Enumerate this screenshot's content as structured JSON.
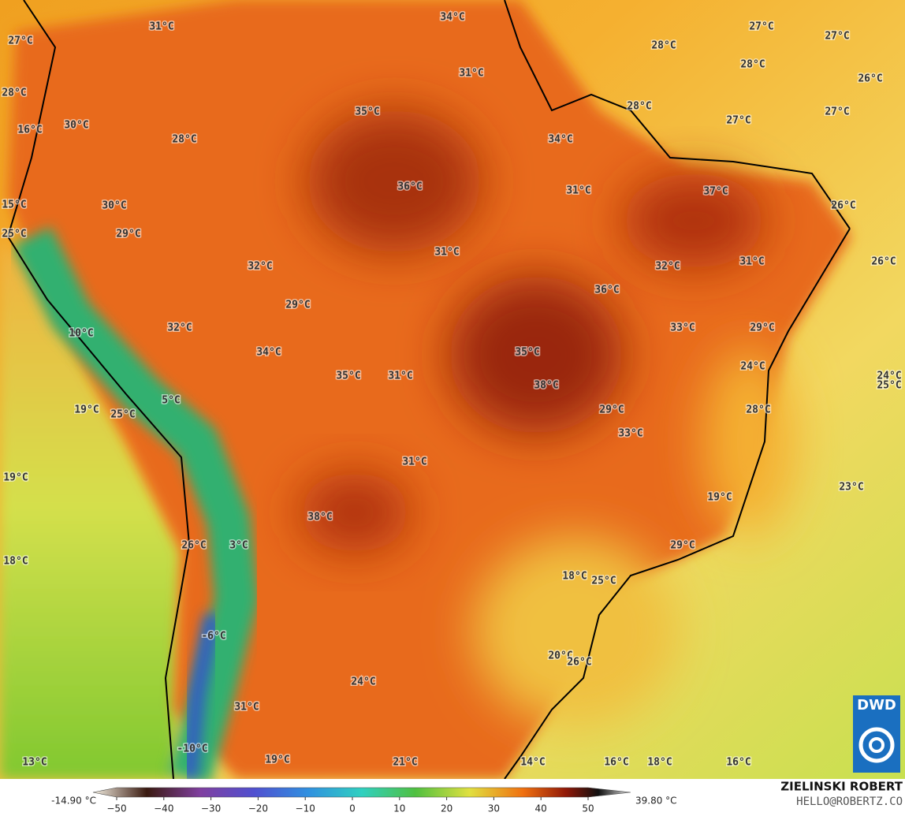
{
  "map": {
    "labels": [
      "27°C",
      "31°C",
      "34°C",
      "27°C",
      "27°C",
      "28°C",
      "28°C",
      "31°C",
      "26°C",
      "28°C",
      "35°C",
      "28°C",
      "27°C",
      "27°C",
      "16°C",
      "30°C",
      "28°C",
      "34°C",
      "36°C",
      "31°C",
      "37°C",
      "15°C",
      "30°C",
      "26°C",
      "25°C",
      "29°C",
      "31°C",
      "32°C",
      "32°C",
      "31°C",
      "26°C",
      "36°C",
      "29°C",
      "32°C",
      "33°C",
      "29°C",
      "10°C",
      "34°C",
      "35°C",
      "24°C",
      "35°C",
      "31°C",
      "24°C",
      "25°C",
      "38°C",
      "5°C",
      "19°C",
      "25°C",
      "29°C",
      "28°C",
      "33°C",
      "31°C",
      "19°C",
      "23°C",
      "19°C",
      "38°C",
      "26°C",
      "3°C",
      "29°C",
      "18°C",
      "18°C",
      "25°C",
      "-6°C",
      "20°C",
      "26°C",
      "24°C",
      "31°C",
      "-10°C",
      "13°C",
      "19°C",
      "21°C",
      "14°C",
      "16°C",
      "18°C",
      "16°C"
    ]
  },
  "colorbar": {
    "min_label": "-14.90 °C",
    "max_label": "39.80 °C",
    "ticks": [
      {
        "value": -50,
        "label": "−50"
      },
      {
        "value": -40,
        "label": "−40"
      },
      {
        "value": -30,
        "label": "−30"
      },
      {
        "value": -20,
        "label": "−20"
      },
      {
        "value": -10,
        "label": "−10"
      },
      0,
      10,
      20,
      30,
      40,
      50
    ]
  },
  "credits": {
    "author": "ZIELINSKI ROBERT",
    "email": "HELLO@ROBERTZ.CO"
  },
  "logo": "DWD"
}
